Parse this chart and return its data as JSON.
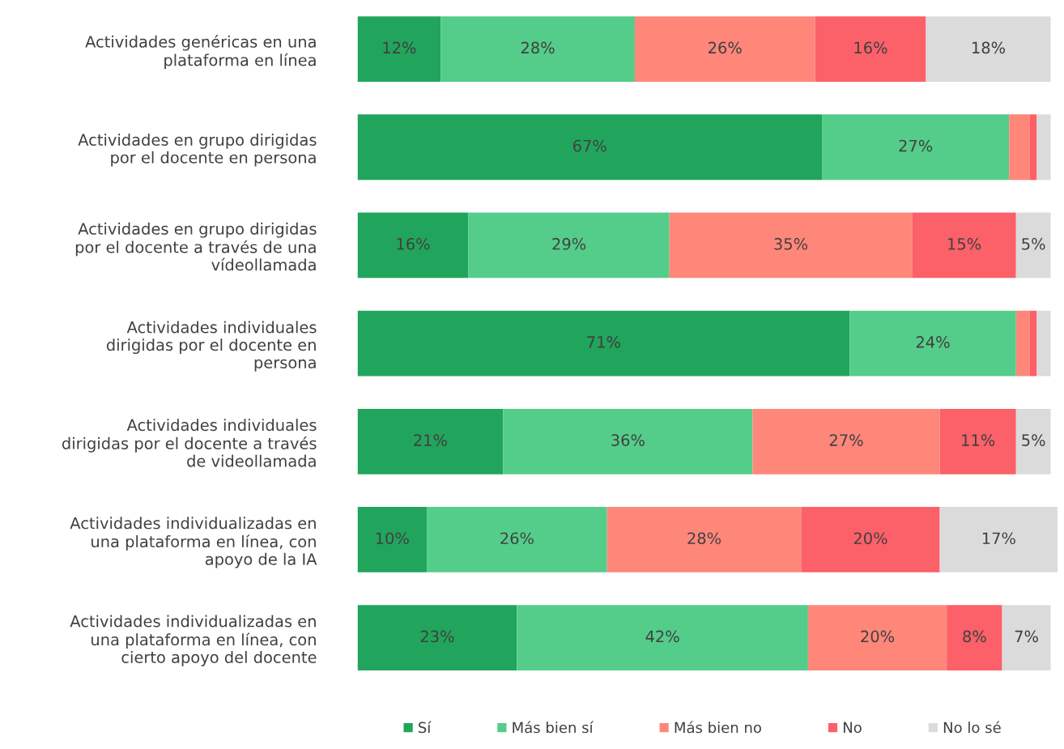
{
  "chart_data": {
    "type": "bar",
    "orientation": "horizontal",
    "stacked": true,
    "categories": [
      "Actividades genéricas en una\nplataforma en línea",
      "Actividades en grupo dirigidas\npor el docente en persona",
      "Actividades en grupo dirigidas\npor el docente a través de una\nvídeollamada",
      "Actividades individuales\ndirigidas por el docente en\npersona",
      "Actividades individuales\ndirigidas por el docente a través\nde videollamada",
      "Actividades individualizadas en\nuna plataforma en línea, con\napoyo de la IA",
      "Actividades individualizadas en\nuna plataforma en línea, con\ncierto apoyo del docente"
    ],
    "series": [
      {
        "name": "Sí",
        "color": "#21a55c",
        "values": [
          12,
          67,
          16,
          71,
          21,
          10,
          23
        ],
        "value_labels": [
          "12%",
          "67%",
          "16%",
          "71%",
          "21%",
          "10%",
          "23%"
        ]
      },
      {
        "name": "Más bien sí",
        "color": "#55cd8a",
        "values": [
          28,
          27,
          29,
          24,
          36,
          26,
          42
        ],
        "value_labels": [
          "28%",
          "27%",
          "29%",
          "24%",
          "36%",
          "26%",
          "42%"
        ]
      },
      {
        "name": "Más bien no",
        "color": "#fe877a",
        "values": [
          26,
          3,
          35,
          2,
          27,
          28,
          20
        ],
        "value_labels": [
          "26%",
          null,
          "35%",
          null,
          "27%",
          "28%",
          "20%"
        ]
      },
      {
        "name": "No",
        "color": "#fc6068",
        "values": [
          16,
          1,
          15,
          1,
          11,
          20,
          8
        ],
        "value_labels": [
          "16%",
          null,
          "15%",
          null,
          "11%",
          "20%",
          "8%"
        ]
      },
      {
        "name": "No lo sé",
        "color": "#dbdbdb",
        "values": [
          18,
          2,
          5,
          2,
          5,
          17,
          7
        ],
        "value_labels": [
          "18%",
          null,
          "5%",
          null,
          "5%",
          "17%",
          "7%"
        ]
      }
    ],
    "xlim": [
      0,
      101
    ],
    "tick_labels": "y",
    "grid": false,
    "legend": "bottom"
  }
}
